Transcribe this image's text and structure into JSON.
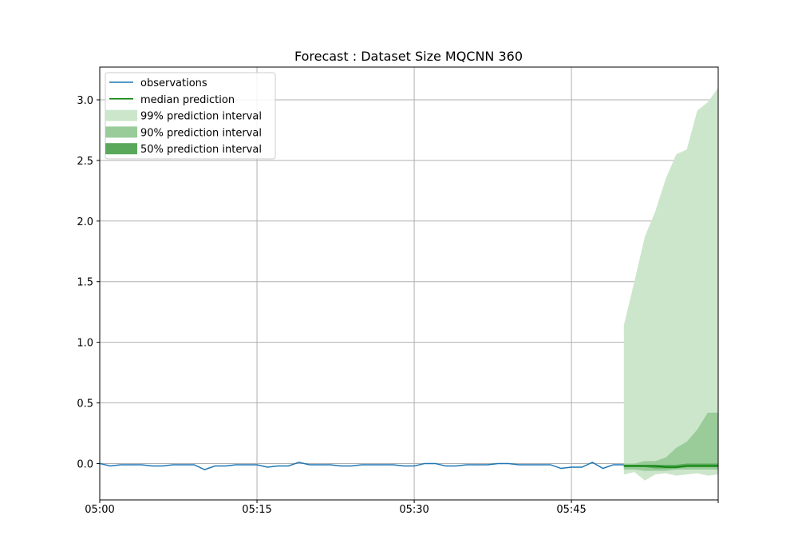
{
  "chart_data": {
    "type": "line",
    "title": "Forecast : Dataset Size MQCNN 360",
    "xlabel": "",
    "ylabel": "",
    "x_start": "05:00",
    "x_step_minutes": 1,
    "x_ticks": [
      "05:00",
      "05:15",
      "05:30",
      "05:45"
    ],
    "xlim": [
      "05:00",
      "05:59"
    ],
    "y_ticks": [
      "0.0",
      "0.5",
      "1.0",
      "1.5",
      "2.0",
      "2.5",
      "3.0"
    ],
    "ylim": [
      -0.3,
      3.27
    ],
    "grid": true,
    "legend_position": "top-left",
    "legend": [
      {
        "label": "observations",
        "kind": "line",
        "color": "#1f77b4"
      },
      {
        "label": "median prediction",
        "kind": "line",
        "color": "#008000"
      },
      {
        "label": "99% prediction interval",
        "kind": "band",
        "color": "#cce6cc"
      },
      {
        "label": "90% prediction interval",
        "kind": "band",
        "color": "#99cc99"
      },
      {
        "label": "50% prediction interval",
        "kind": "band",
        "color": "#5aa85a"
      }
    ],
    "observations": {
      "name": "observations",
      "color": "#1f77b4",
      "values": [
        0.0,
        -0.02,
        -0.01,
        -0.01,
        -0.01,
        -0.02,
        -0.02,
        -0.01,
        -0.01,
        -0.01,
        -0.05,
        -0.02,
        -0.02,
        -0.01,
        -0.01,
        -0.01,
        -0.03,
        -0.02,
        -0.02,
        0.01,
        -0.01,
        -0.01,
        -0.01,
        -0.02,
        -0.02,
        -0.01,
        -0.01,
        -0.01,
        -0.01,
        -0.02,
        -0.02,
        0.0,
        0.0,
        -0.02,
        -0.02,
        -0.01,
        -0.01,
        -0.01,
        0.0,
        0.0,
        -0.01,
        -0.01,
        -0.01,
        -0.01,
        -0.04,
        -0.03,
        -0.03,
        0.01,
        -0.04,
        -0.01,
        -0.01
      ]
    },
    "forecast_start": "05:50",
    "median": {
      "name": "median prediction",
      "color": "#008000",
      "values": [
        -0.02,
        -0.02,
        -0.02,
        -0.02,
        -0.03,
        -0.03,
        -0.02,
        -0.02,
        -0.02,
        -0.02
      ]
    },
    "intervals": [
      {
        "name": "99% prediction interval",
        "color": "#cce6cc",
        "lower": [
          -0.09,
          -0.07,
          -0.14,
          -0.09,
          -0.08,
          -0.1,
          -0.09,
          -0.08,
          -0.1,
          -0.09
        ],
        "upper": [
          1.14,
          1.5,
          1.87,
          2.08,
          2.35,
          2.55,
          2.59,
          2.91,
          2.98,
          3.1
        ]
      },
      {
        "name": "90% prediction interval",
        "color": "#99cc99",
        "lower": [
          -0.05,
          -0.05,
          -0.06,
          -0.06,
          -0.06,
          -0.05,
          -0.05,
          -0.05,
          -0.05,
          -0.05
        ],
        "upper": [
          0.0,
          0.0,
          0.02,
          0.02,
          0.05,
          0.13,
          0.18,
          0.28,
          0.42,
          0.42
        ]
      },
      {
        "name": "50% prediction interval",
        "color": "#5aa85a",
        "lower": [
          -0.03,
          -0.03,
          -0.03,
          -0.04,
          -0.04,
          -0.04,
          -0.03,
          -0.03,
          -0.03,
          -0.03
        ],
        "upper": [
          -0.01,
          -0.01,
          -0.01,
          -0.01,
          -0.01,
          -0.01,
          0.0,
          0.0,
          0.0,
          0.0
        ]
      }
    ]
  }
}
